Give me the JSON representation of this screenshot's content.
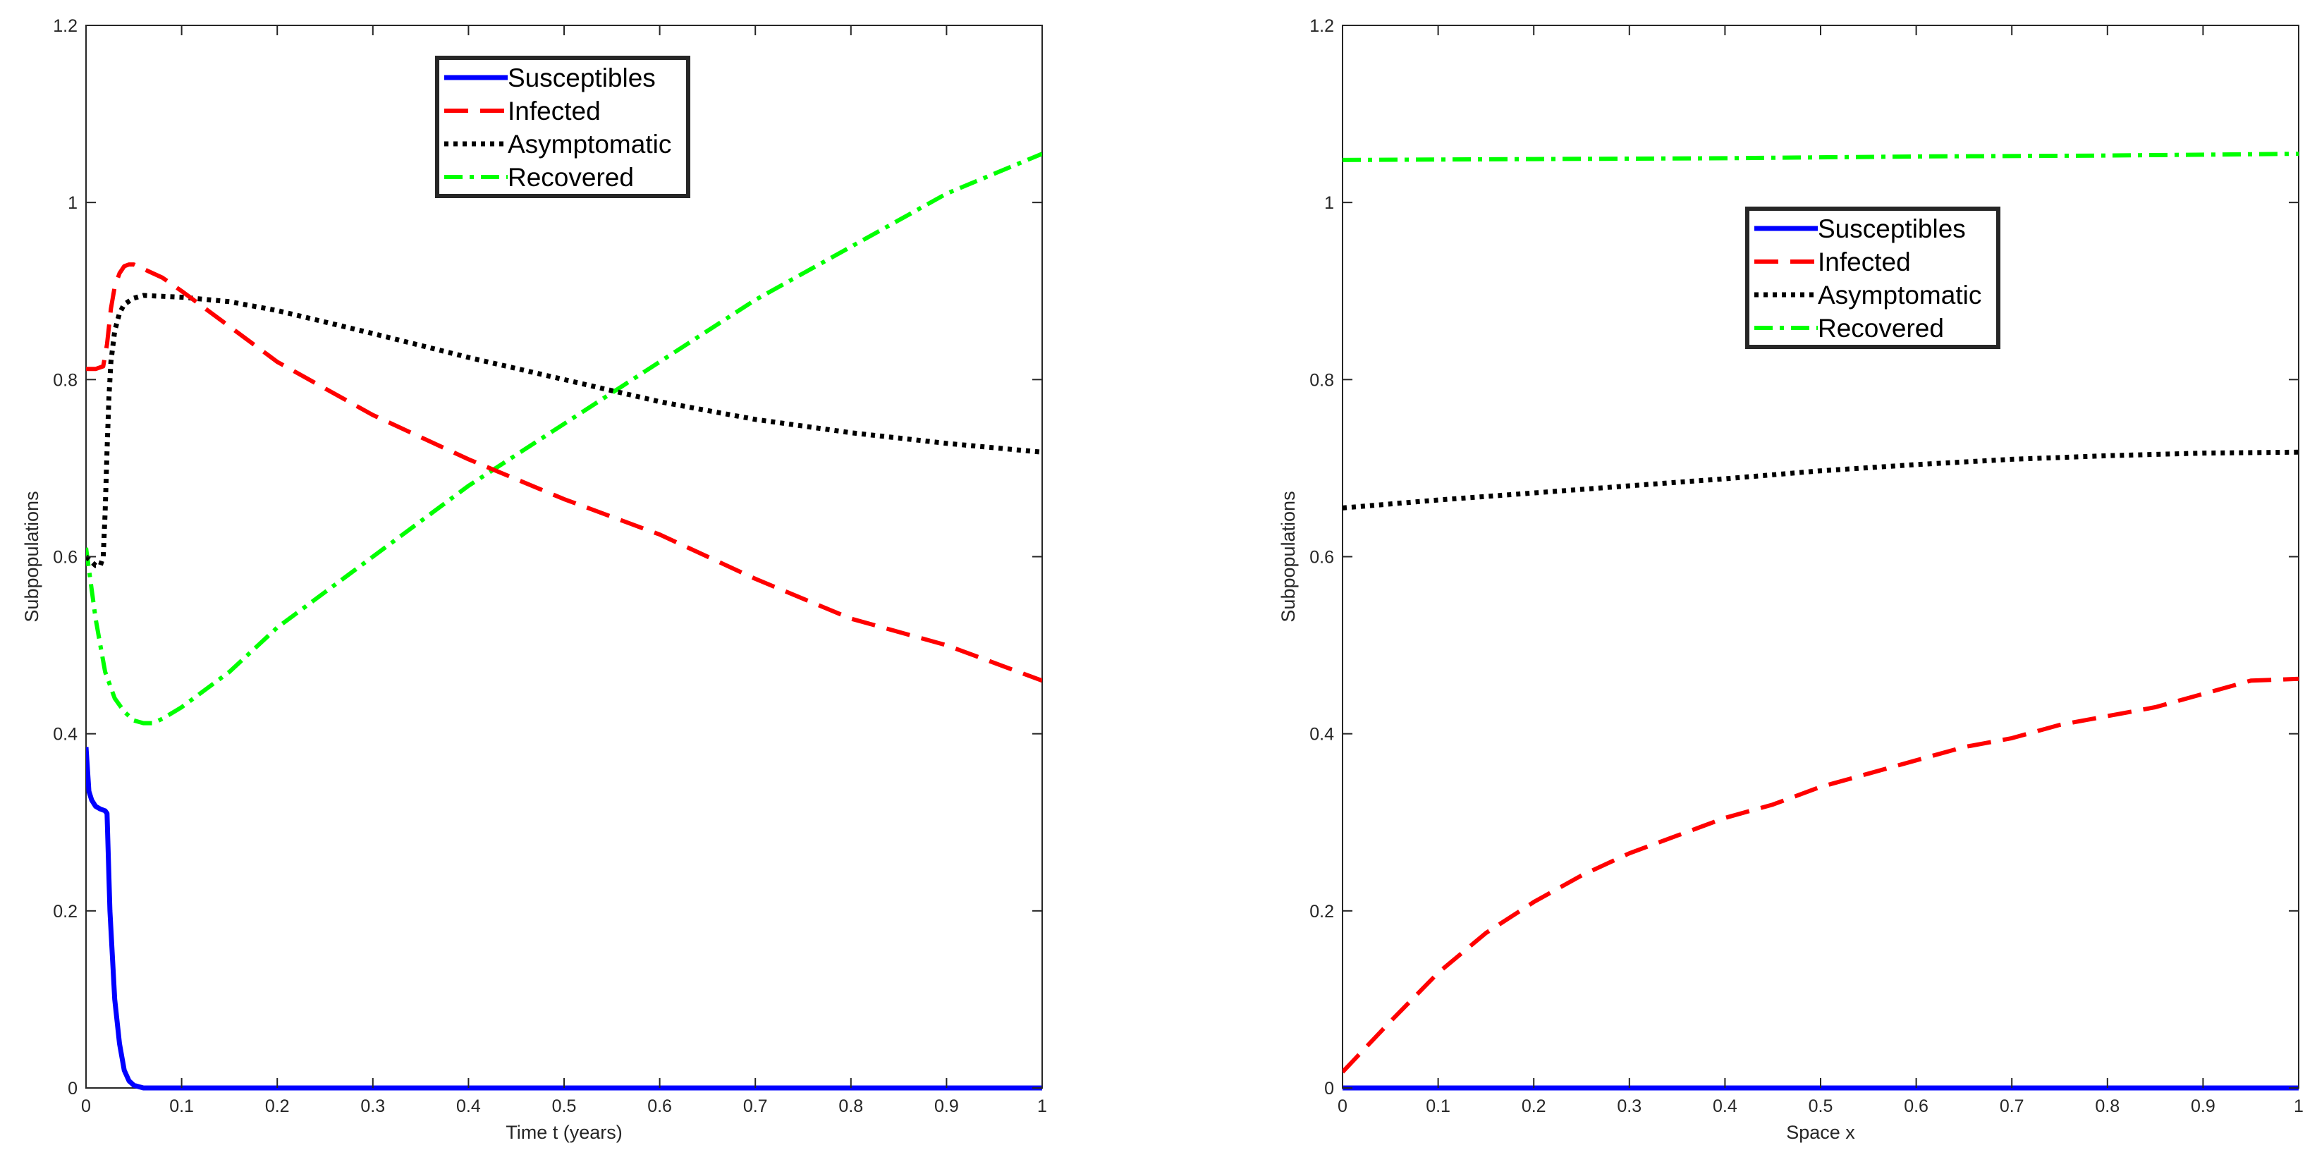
{
  "chart_data": [
    {
      "type": "line",
      "title": "",
      "xlabel": "Time t (years)",
      "ylabel": "Subpopulations",
      "xlim": [
        0,
        1
      ],
      "ylim": [
        0,
        1.2
      ],
      "xticks": [
        "0",
        "0.1",
        "0.2",
        "0.3",
        "0.4",
        "0.5",
        "0.6",
        "0.7",
        "0.8",
        "0.9",
        "1"
      ],
      "yticks": [
        "0",
        "0.2",
        "0.4",
        "0.6",
        "0.8",
        "1",
        "1.2"
      ],
      "grid": false,
      "legend_position": "top-center",
      "series": [
        {
          "name": "Susceptibles",
          "color": "#0000ff",
          "style": "solid",
          "x": [
            0,
            0.003,
            0.006,
            0.01,
            0.015,
            0.02,
            0.022,
            0.025,
            0.03,
            0.035,
            0.04,
            0.045,
            0.05,
            0.06,
            0.08,
            0.1,
            0.2,
            0.4,
            0.6,
            0.8,
            1.0
          ],
          "y": [
            0.385,
            0.335,
            0.325,
            0.318,
            0.315,
            0.313,
            0.31,
            0.2,
            0.1,
            0.05,
            0.02,
            0.008,
            0.003,
            0,
            0,
            0,
            0,
            0,
            0,
            0,
            0
          ]
        },
        {
          "name": "Infected",
          "color": "#ff0000",
          "style": "dashed",
          "x": [
            0,
            0.01,
            0.018,
            0.022,
            0.026,
            0.03,
            0.035,
            0.04,
            0.045,
            0.05,
            0.06,
            0.08,
            0.1,
            0.15,
            0.2,
            0.3,
            0.4,
            0.5,
            0.6,
            0.7,
            0.8,
            0.9,
            1.0
          ],
          "y": [
            0.812,
            0.812,
            0.815,
            0.84,
            0.88,
            0.905,
            0.92,
            0.928,
            0.93,
            0.93,
            0.925,
            0.915,
            0.9,
            0.86,
            0.82,
            0.76,
            0.71,
            0.665,
            0.625,
            0.575,
            0.53,
            0.5,
            0.46
          ]
        },
        {
          "name": "Asymptomatic",
          "color": "#000000",
          "style": "dotted",
          "x": [
            0,
            0.005,
            0.01,
            0.015,
            0.018,
            0.02,
            0.022,
            0.024,
            0.026,
            0.03,
            0.035,
            0.04,
            0.05,
            0.06,
            0.1,
            0.15,
            0.2,
            0.3,
            0.4,
            0.5,
            0.6,
            0.7,
            0.8,
            0.9,
            1.0
          ],
          "y": [
            0.6,
            0.595,
            0.59,
            0.59,
            0.6,
            0.65,
            0.72,
            0.78,
            0.82,
            0.855,
            0.875,
            0.885,
            0.892,
            0.895,
            0.893,
            0.888,
            0.878,
            0.852,
            0.825,
            0.8,
            0.775,
            0.755,
            0.74,
            0.728,
            0.718
          ]
        },
        {
          "name": "Recovered",
          "color": "#00ff00",
          "style": "dashdot",
          "x": [
            0,
            0.005,
            0.01,
            0.015,
            0.02,
            0.03,
            0.04,
            0.05,
            0.06,
            0.07,
            0.08,
            0.1,
            0.15,
            0.2,
            0.3,
            0.4,
            0.5,
            0.6,
            0.7,
            0.8,
            0.9,
            1.0
          ],
          "y": [
            0.61,
            0.57,
            0.53,
            0.5,
            0.47,
            0.44,
            0.425,
            0.415,
            0.412,
            0.412,
            0.417,
            0.43,
            0.47,
            0.52,
            0.6,
            0.68,
            0.75,
            0.82,
            0.89,
            0.95,
            1.01,
            1.055
          ]
        }
      ]
    },
    {
      "type": "line",
      "title": "",
      "xlabel": "Space x",
      "ylabel": "Subpopulations",
      "xlim": [
        0,
        1
      ],
      "ylim": [
        0,
        1.2
      ],
      "xticks": [
        "0",
        "0.1",
        "0.2",
        "0.3",
        "0.4",
        "0.5",
        "0.6",
        "0.7",
        "0.8",
        "0.9",
        "1"
      ],
      "yticks": [
        "0",
        "0.2",
        "0.4",
        "0.6",
        "0.8",
        "1",
        "1.2"
      ],
      "grid": false,
      "legend_position": "top-center",
      "series": [
        {
          "name": "Susceptibles",
          "color": "#0000ff",
          "style": "solid",
          "x": [
            0,
            0.25,
            0.5,
            0.75,
            1.0
          ],
          "y": [
            0,
            0,
            0,
            0,
            0
          ]
        },
        {
          "name": "Infected",
          "color": "#ff0000",
          "style": "dashed",
          "x": [
            0,
            0.05,
            0.1,
            0.15,
            0.2,
            0.25,
            0.3,
            0.35,
            0.4,
            0.45,
            0.5,
            0.55,
            0.6,
            0.65,
            0.7,
            0.75,
            0.8,
            0.85,
            0.9,
            0.95,
            1.0
          ],
          "y": [
            0.018,
            0.075,
            0.13,
            0.175,
            0.21,
            0.24,
            0.265,
            0.285,
            0.305,
            0.32,
            0.34,
            0.355,
            0.37,
            0.385,
            0.395,
            0.41,
            0.42,
            0.43,
            0.445,
            0.46,
            0.462
          ]
        },
        {
          "name": "Asymptomatic",
          "color": "#000000",
          "style": "dotted",
          "x": [
            0,
            0.1,
            0.2,
            0.3,
            0.4,
            0.5,
            0.6,
            0.7,
            0.8,
            0.9,
            1.0
          ],
          "y": [
            0.655,
            0.664,
            0.672,
            0.68,
            0.688,
            0.697,
            0.704,
            0.71,
            0.714,
            0.717,
            0.718
          ]
        },
        {
          "name": "Recovered",
          "color": "#00ff00",
          "style": "dashdot",
          "x": [
            0,
            0.2,
            0.4,
            0.6,
            0.8,
            1.0
          ],
          "y": [
            1.048,
            1.049,
            1.05,
            1.052,
            1.053,
            1.055
          ]
        }
      ]
    }
  ]
}
